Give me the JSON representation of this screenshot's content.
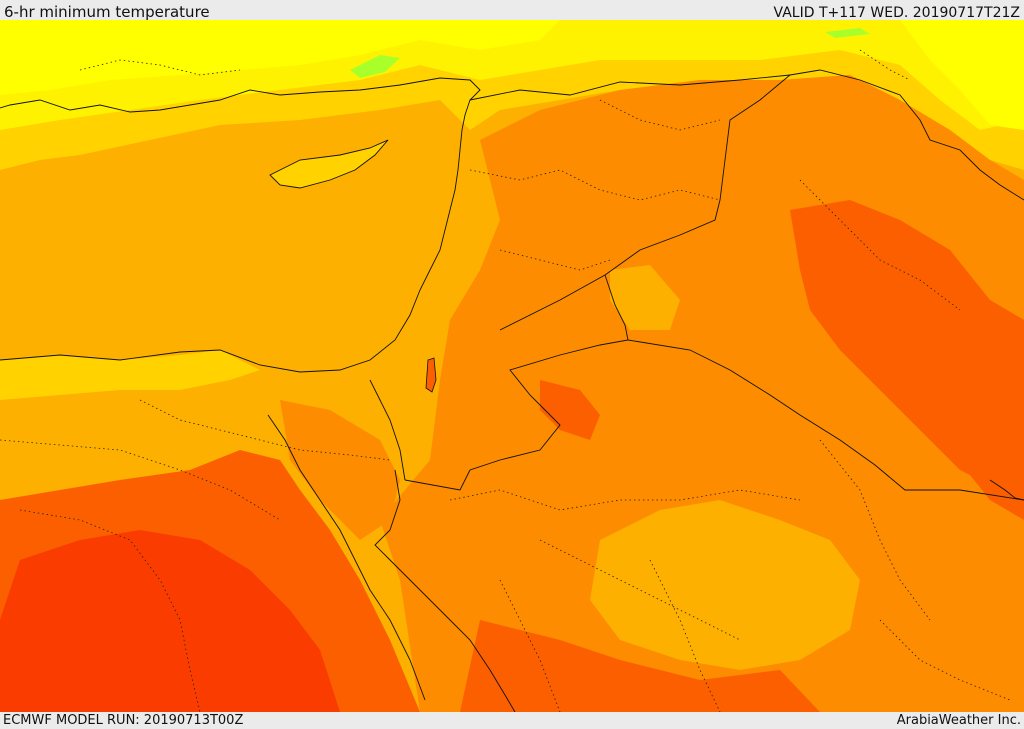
{
  "header": {
    "title": "6-hr minimum temperature",
    "valid": "VALID T+117 WED. 20190717T21Z"
  },
  "footer": {
    "model_run": "ECMWF MODEL RUN: 20190713T00Z",
    "credit": "ArabiaWeather Inc."
  },
  "map": {
    "colors": {
      "yellow_light": "#ffff00",
      "yellow": "#fff200",
      "yellow_orange": "#ffd200",
      "amber": "#fdb000",
      "orange": "#fd8c00",
      "dark_orange": "#fb5f00",
      "red_orange": "#fa3c00",
      "green": "#a8ff2a",
      "border": "#111111"
    }
  }
}
